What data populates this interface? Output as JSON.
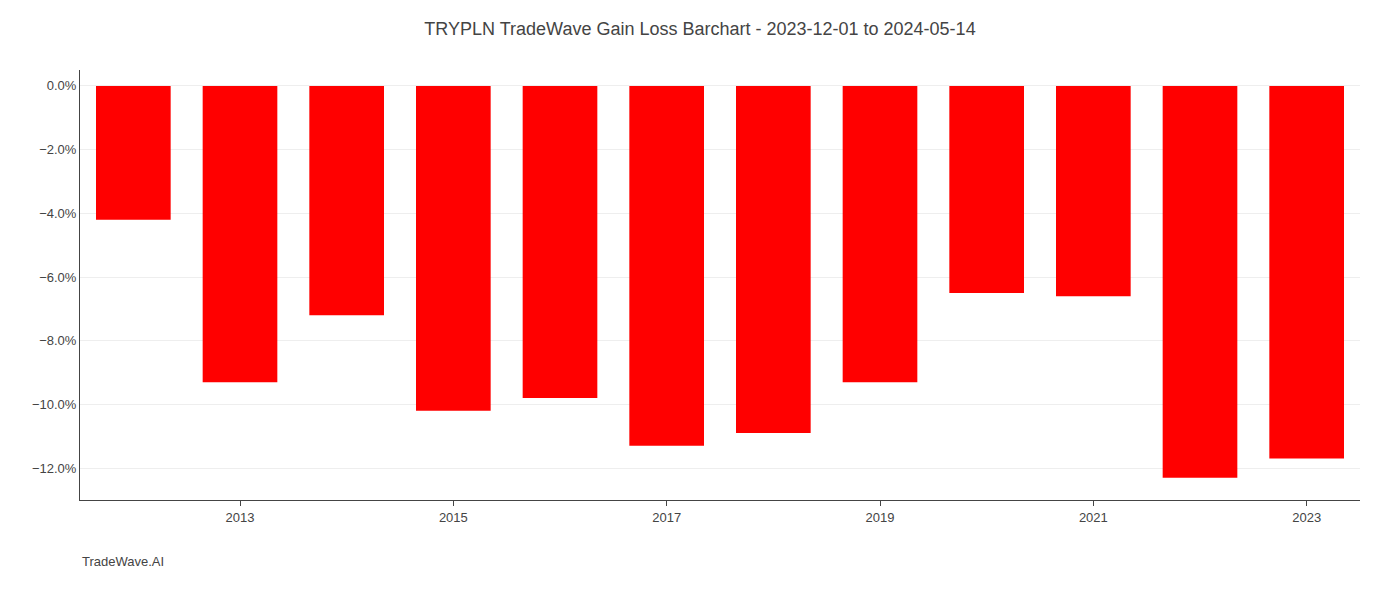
{
  "chart_data": {
    "type": "bar",
    "title": "TRYPLN TradeWave Gain Loss Barchart - 2023-12-01 to 2024-05-14",
    "annotations": [
      "TradeWave.AI"
    ],
    "categories": [
      null,
      "2013",
      null,
      "2015",
      null,
      "2017",
      null,
      "2019",
      null,
      "2021",
      null,
      "2023"
    ],
    "values": [
      -4.2,
      -9.3,
      -7.2,
      -10.2,
      -9.8,
      -11.3,
      -10.9,
      -9.3,
      -6.5,
      -6.6,
      -12.3,
      -11.7
    ],
    "color": "#ff0000",
    "ylim": [
      -13.0,
      0.5
    ],
    "yticks": [
      {
        "value": 0.0,
        "label": "0.0%"
      },
      {
        "value": -2.0,
        "label": "−2.0%"
      },
      {
        "value": -4.0,
        "label": "−4.0%"
      },
      {
        "value": -6.0,
        "label": "−6.0%"
      },
      {
        "value": -8.0,
        "label": "−8.0%"
      },
      {
        "value": -10.0,
        "label": "−10.0%"
      },
      {
        "value": -12.0,
        "label": "−12.0%"
      }
    ],
    "grid": true
  }
}
